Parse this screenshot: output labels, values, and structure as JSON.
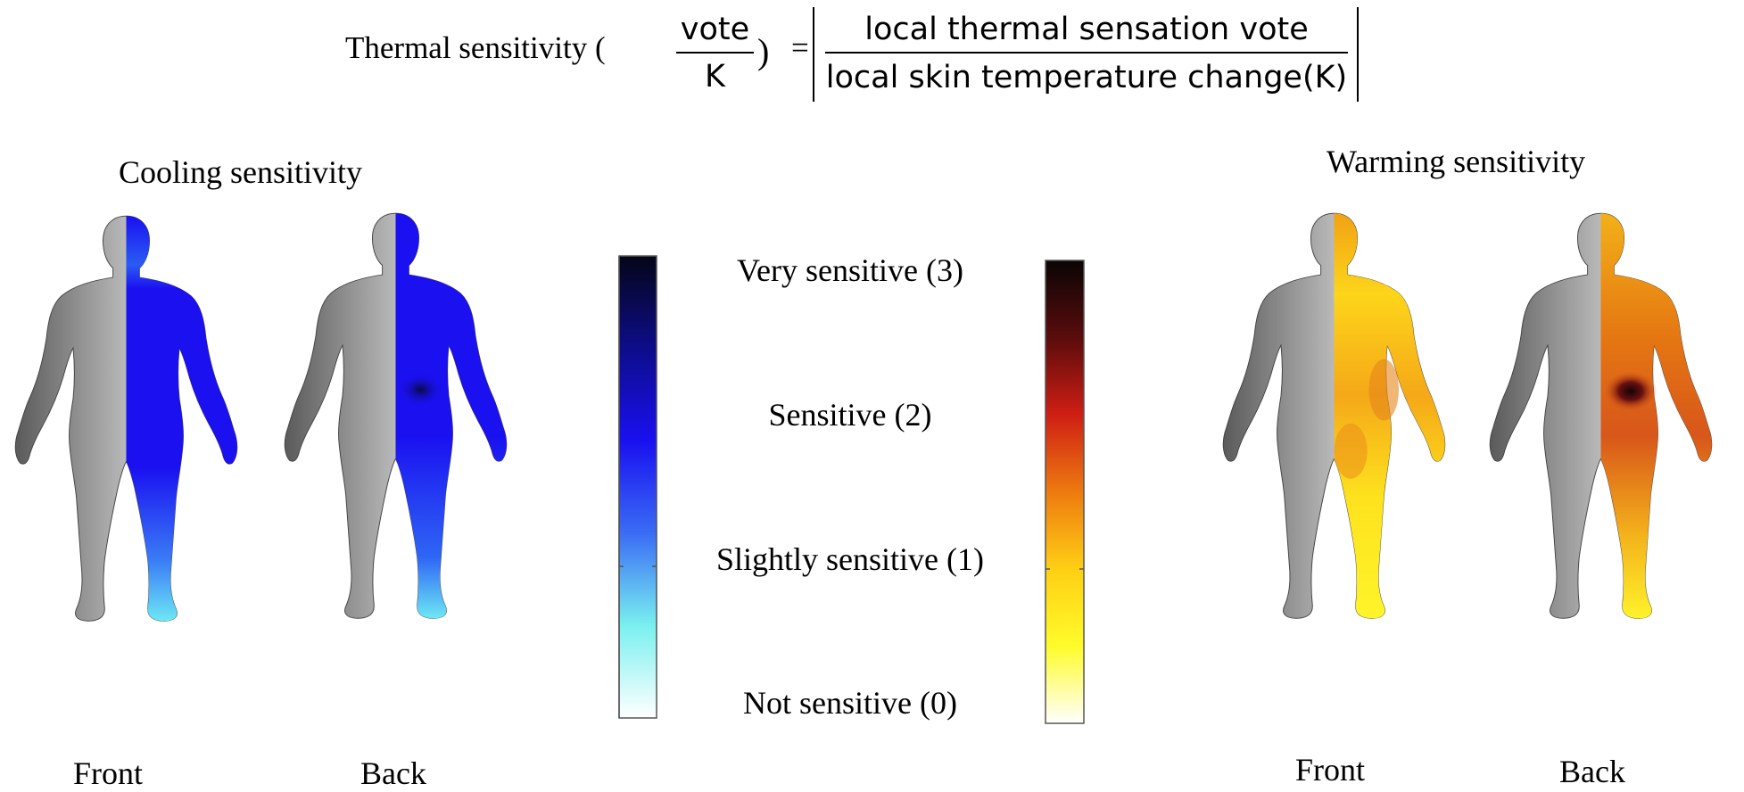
{
  "formula": {
    "lhs": "Thermal sensitivity (",
    "unit_numerator": "vote",
    "unit_denominator": "K",
    "close_paren": ")",
    "equals": "=",
    "numerator": "local thermal sensation vote",
    "denominator": "local skin temperature change(K)"
  },
  "cooling": {
    "title": "Cooling sensitivity",
    "front_label": "Front",
    "back_label": "Back",
    "colormap": [
      "#ffffff",
      "#7af0f0",
      "#3a6cf5",
      "#1a10f0",
      "#0d0d8a",
      "#050518"
    ]
  },
  "warming": {
    "title": "Warming sensitivity",
    "front_label": "Front",
    "back_label": "Back",
    "colormap": [
      "#ffffff",
      "#fffb2a",
      "#ffcf14",
      "#ee7a10",
      "#cf1e14",
      "#5a0c0c",
      "#0a0505"
    ]
  },
  "scale": {
    "levels": [
      "Very sensitive (3)",
      "Sensitive (2)",
      "Slightly sensitive (1)",
      "Not sensitive (0)"
    ]
  }
}
